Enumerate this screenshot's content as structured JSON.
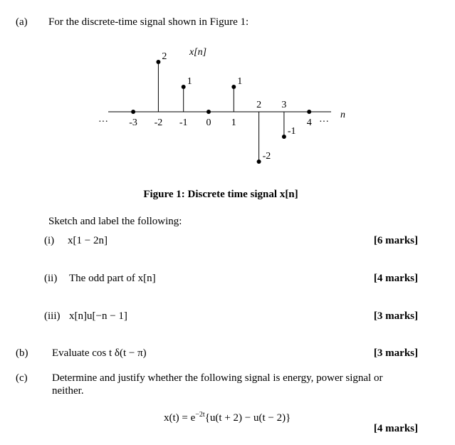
{
  "part_a": {
    "label": "(a)",
    "text": "For the discrete-time signal shown in Figure 1:",
    "figure": {
      "ylabel": "x[n]",
      "xlabel": "n",
      "caption": "Figure 1: Discrete time signal x[n]",
      "n": [
        -3,
        -2,
        -1,
        0,
        1,
        2,
        3,
        4
      ],
      "values": [
        0,
        2,
        1,
        0,
        1,
        -2,
        -1,
        0
      ]
    },
    "instruction": "Sketch and label the following:",
    "items": [
      {
        "label": "(i)",
        "text": "x[1 − 2n]",
        "marks": "[6 marks]"
      },
      {
        "label": "(ii)",
        "text": "The odd part of x[n]",
        "marks": "[4 marks]"
      },
      {
        "label": "(iii)",
        "text": "x[n]u[−n − 1]",
        "marks": "[3 marks]"
      }
    ]
  },
  "part_b": {
    "label": "(b)",
    "text": "Evaluate cos t δ(t − π)",
    "marks": "[3 marks]"
  },
  "part_c": {
    "label": "(c)",
    "text": "Determine and justify whether the following signal is energy, power signal or neither.",
    "formula": {
      "base": "x(t) = e",
      "exponent": "−2t",
      "rest": "{u(t + 2) − u(t − 2)}"
    },
    "marks": "[4 marks]"
  }
}
